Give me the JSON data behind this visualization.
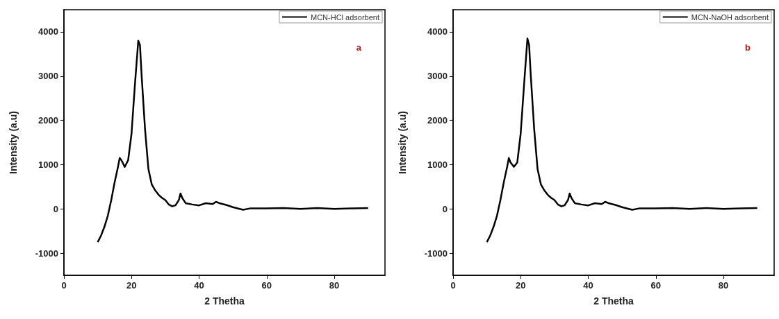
{
  "chart_data": [
    {
      "type": "line",
      "xlabel": "2 Thetha",
      "ylabel": "Intensity (a.u)",
      "xlim": [
        0,
        95
      ],
      "xticks": [
        0,
        20,
        40,
        60,
        80
      ],
      "ylim": [
        -1500,
        4500
      ],
      "yticks": [
        -1000,
        0,
        1000,
        2000,
        3000,
        4000
      ],
      "legend": "top right",
      "grid": false,
      "marker": "none",
      "line_style": "solid",
      "annotations": [
        "a"
      ],
      "x": [
        10,
        11,
        12,
        13,
        14,
        15,
        16,
        16.5,
        17,
        18,
        19,
        20,
        21,
        22,
        22.5,
        23,
        24,
        25,
        26,
        27,
        28,
        29,
        30,
        31,
        32,
        33,
        34,
        34.5,
        35,
        36,
        38,
        40,
        42,
        44,
        45,
        46,
        48,
        50,
        52,
        53,
        55,
        60,
        65,
        70,
        75,
        80,
        85,
        90
      ],
      "series": [
        {
          "name": "MCN-HCl adsorbent",
          "color": "#000000",
          "values": [
            -750,
            -600,
            -400,
            -150,
            200,
            600,
            950,
            1150,
            1100,
            950,
            1100,
            1700,
            2800,
            3800,
            3700,
            3000,
            1800,
            900,
            550,
            420,
            320,
            250,
            200,
            100,
            60,
            80,
            200,
            350,
            250,
            130,
            100,
            80,
            130,
            110,
            160,
            130,
            90,
            40,
            0,
            -20,
            10,
            10,
            20,
            0,
            20,
            0,
            10,
            20
          ]
        }
      ]
    },
    {
      "type": "line",
      "xlabel": "2 Thetha",
      "ylabel": "Intensity (a.u)",
      "xlim": [
        0,
        95
      ],
      "xticks": [
        0,
        20,
        40,
        60,
        80
      ],
      "ylim": [
        -1500,
        4500
      ],
      "yticks": [
        -1000,
        0,
        1000,
        2000,
        3000,
        4000
      ],
      "legend": "top right",
      "grid": false,
      "marker": "none",
      "line_style": "solid",
      "annotations": [
        "b"
      ],
      "x": [
        10,
        11,
        12,
        13,
        14,
        15,
        16,
        16.5,
        17,
        18,
        19,
        20,
        21,
        22,
        22.5,
        23,
        24,
        25,
        26,
        27,
        28,
        29,
        30,
        31,
        32,
        33,
        34,
        34.5,
        35,
        36,
        38,
        40,
        42,
        44,
        45,
        46,
        48,
        50,
        52,
        53,
        55,
        60,
        65,
        70,
        75,
        80,
        85,
        90
      ],
      "series": [
        {
          "name": "MCN-NaOH adsorbent",
          "color": "#000000",
          "values": [
            -750,
            -600,
            -400,
            -150,
            200,
            600,
            950,
            1150,
            1050,
            950,
            1050,
            1700,
            2800,
            3850,
            3700,
            3000,
            1800,
            900,
            550,
            420,
            320,
            250,
            200,
            100,
            60,
            80,
            200,
            350,
            250,
            130,
            100,
            80,
            130,
            110,
            160,
            130,
            90,
            40,
            0,
            -20,
            10,
            10,
            20,
            0,
            20,
            0,
            10,
            20
          ]
        }
      ]
    }
  ]
}
